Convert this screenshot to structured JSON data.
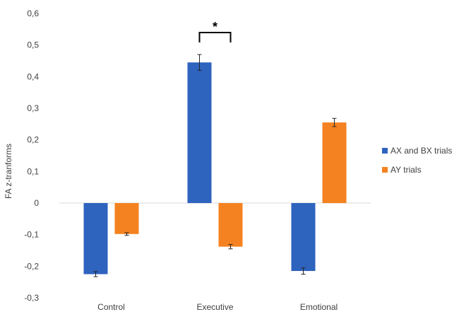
{
  "chart_data": {
    "type": "bar",
    "title": "",
    "xlabel": "",
    "ylabel": "FA z-tranforms",
    "ylim": [
      -0.3,
      0.6
    ],
    "yticks": [
      "0,6",
      "0,5",
      "0,4",
      "0,3",
      "0,2",
      "0,1",
      "0",
      "-0,1",
      "-0,2",
      "-0,3"
    ],
    "ytick_values": [
      0.6,
      0.5,
      0.4,
      0.3,
      0.2,
      0.1,
      0,
      -0.1,
      -0.2,
      -0.3
    ],
    "categories": [
      "Control",
      "Executive",
      "Emotional"
    ],
    "series": [
      {
        "name": "AX and BX trials",
        "color": "#2e63be",
        "values": [
          -0.225,
          0.445,
          -0.215
        ],
        "errors": [
          0.008,
          0.025,
          0.01
        ]
      },
      {
        "name": "AY trials",
        "color": "#f58220",
        "values": [
          -0.098,
          -0.138,
          0.255
        ],
        "errors": [
          0.004,
          0.007,
          0.013
        ]
      }
    ],
    "annotations": [
      {
        "text": "*",
        "category": "Executive",
        "between": [
          "AX and BX trials",
          "AY trials"
        ]
      }
    ],
    "grid": false,
    "legend_position": "right"
  }
}
